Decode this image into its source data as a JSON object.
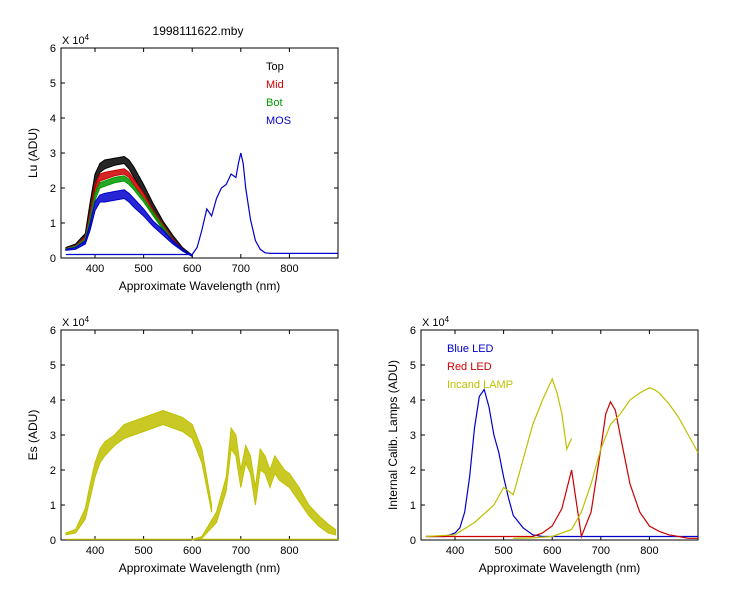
{
  "figure": {
    "title": "1998111622.mby"
  },
  "chart_data": [
    {
      "id": "lu",
      "type": "line",
      "title": "1998111622.mby",
      "xlabel": "Approximate Wavelength (nm)",
      "ylabel": "Lu (ADU)",
      "exponent_label": "X 10",
      "exponent_power": "4",
      "xlim": [
        330,
        900
      ],
      "ylim": [
        0,
        6
      ],
      "x_ticks": [
        400,
        500,
        600,
        700,
        800
      ],
      "y_ticks": [
        0,
        1,
        2,
        3,
        4,
        5,
        6
      ],
      "legend": {
        "placement": "top-right",
        "entries": [
          {
            "name": "Top",
            "color": "#000000"
          },
          {
            "name": "Mid",
            "color": "#cc0000"
          },
          {
            "name": "Bot",
            "color": "#009900"
          },
          {
            "name": "MOS",
            "color": "#0000cc"
          }
        ]
      },
      "series": [
        {
          "name": "Top",
          "color": "#000000",
          "band": true,
          "x": [
            340,
            360,
            380,
            390,
            400,
            410,
            420,
            440,
            460,
            470,
            480,
            500,
            520,
            540,
            560,
            580,
            600
          ],
          "lower": [
            0.25,
            0.3,
            0.5,
            1.1,
            2.0,
            2.45,
            2.55,
            2.65,
            2.7,
            2.55,
            2.3,
            1.85,
            1.35,
            0.9,
            0.5,
            0.2,
            0.05
          ],
          "upper": [
            0.3,
            0.4,
            0.7,
            1.6,
            2.4,
            2.7,
            2.8,
            2.85,
            2.9,
            2.8,
            2.6,
            2.1,
            1.55,
            1.05,
            0.65,
            0.3,
            0.08
          ]
        },
        {
          "name": "Mid",
          "color": "#cc0000",
          "band": true,
          "x": [
            340,
            360,
            380,
            390,
            400,
            410,
            420,
            440,
            460,
            470,
            480,
            500,
            520,
            540,
            560,
            580,
            600
          ],
          "lower": [
            0.25,
            0.3,
            0.45,
            1.0,
            1.8,
            2.2,
            2.25,
            2.35,
            2.4,
            2.3,
            2.1,
            1.7,
            1.25,
            0.85,
            0.45,
            0.2,
            0.05
          ],
          "upper": [
            0.28,
            0.35,
            0.6,
            1.3,
            2.1,
            2.4,
            2.45,
            2.5,
            2.55,
            2.45,
            2.25,
            1.85,
            1.35,
            0.95,
            0.55,
            0.25,
            0.06
          ]
        },
        {
          "name": "Bot",
          "color": "#009900",
          "band": true,
          "x": [
            340,
            360,
            380,
            390,
            400,
            410,
            420,
            440,
            460,
            470,
            480,
            500,
            520,
            540,
            560,
            580,
            600
          ],
          "lower": [
            0.25,
            0.3,
            0.45,
            0.9,
            1.65,
            2.0,
            2.05,
            2.15,
            2.2,
            2.1,
            1.95,
            1.6,
            1.2,
            0.8,
            0.45,
            0.2,
            0.05
          ],
          "upper": [
            0.27,
            0.33,
            0.55,
            1.15,
            1.85,
            2.15,
            2.2,
            2.3,
            2.35,
            2.25,
            2.05,
            1.7,
            1.3,
            0.9,
            0.5,
            0.22,
            0.06
          ]
        },
        {
          "name": "MOS",
          "color": "#0000cc",
          "band": true,
          "x": [
            340,
            360,
            380,
            390,
            400,
            410,
            420,
            440,
            460,
            470,
            480,
            500,
            520,
            540,
            560,
            580,
            600
          ],
          "lower": [
            0.22,
            0.25,
            0.4,
            0.8,
            1.35,
            1.6,
            1.6,
            1.65,
            1.7,
            1.6,
            1.45,
            1.2,
            0.9,
            0.65,
            0.4,
            0.2,
            0.05
          ],
          "upper": [
            0.25,
            0.3,
            0.5,
            1.0,
            1.6,
            1.8,
            1.85,
            1.9,
            1.95,
            1.85,
            1.7,
            1.4,
            1.05,
            0.8,
            0.5,
            0.25,
            0.07
          ]
        },
        {
          "name": "MOS",
          "color": "#0000cc",
          "band": false,
          "x": [
            340,
            600,
            610,
            620,
            630,
            640,
            650,
            660,
            670,
            680,
            690,
            695,
            700,
            705,
            710,
            720,
            730,
            740,
            750,
            760,
            800,
            900
          ],
          "y": [
            0.1,
            0.1,
            0.3,
            0.8,
            1.4,
            1.2,
            1.7,
            2.0,
            2.1,
            2.4,
            2.3,
            2.7,
            3.0,
            2.7,
            2.0,
            1.1,
            0.5,
            0.25,
            0.15,
            0.13,
            0.13,
            0.13
          ]
        }
      ]
    },
    {
      "id": "es",
      "type": "line",
      "title": "",
      "xlabel": "Approximate Wavelength (nm)",
      "ylabel": "Es (ADU)",
      "exponent_label": "X 10",
      "exponent_power": "4",
      "xlim": [
        330,
        900
      ],
      "ylim": [
        0,
        6
      ],
      "x_ticks": [
        400,
        500,
        600,
        700,
        800
      ],
      "y_ticks": [
        0,
        1,
        2,
        3,
        4,
        5,
        6
      ],
      "series": [
        {
          "name": "",
          "color": "#c0c000",
          "band": true,
          "x": [
            340,
            360,
            380,
            390,
            400,
            410,
            420,
            440,
            460,
            480,
            500,
            520,
            540,
            560,
            580,
            600,
            620,
            630,
            640
          ],
          "lower": [
            0.15,
            0.2,
            0.6,
            1.2,
            1.8,
            2.2,
            2.4,
            2.7,
            2.9,
            3.0,
            3.1,
            3.2,
            3.3,
            3.2,
            3.1,
            2.9,
            2.2,
            1.5,
            0.8
          ],
          "upper": [
            0.2,
            0.3,
            0.9,
            1.6,
            2.2,
            2.6,
            2.8,
            3.0,
            3.3,
            3.4,
            3.5,
            3.6,
            3.7,
            3.6,
            3.5,
            3.3,
            2.6,
            1.8,
            1.0
          ]
        },
        {
          "name": "",
          "color": "#c0c000",
          "band": true,
          "x": [
            600,
            620,
            650,
            670,
            680,
            690,
            700,
            710,
            720,
            730,
            740,
            750,
            760,
            770,
            780,
            790,
            800,
            820,
            840,
            860,
            880,
            895
          ],
          "lower": [
            0.0,
            0.05,
            0.5,
            1.4,
            2.6,
            2.4,
            1.5,
            2.2,
            1.9,
            1.0,
            2.0,
            1.9,
            1.5,
            1.9,
            1.7,
            1.6,
            1.5,
            1.1,
            0.7,
            0.4,
            0.2,
            0.15
          ],
          "upper": [
            0.02,
            0.1,
            0.8,
            1.8,
            3.2,
            3.0,
            2.0,
            2.7,
            2.4,
            1.5,
            2.6,
            2.4,
            2.0,
            2.4,
            2.2,
            2.0,
            1.9,
            1.5,
            1.0,
            0.7,
            0.45,
            0.3
          ]
        },
        {
          "name": "",
          "color": "#c0c000",
          "band": false,
          "x": [
            340,
            900
          ],
          "y": [
            0.02,
            0.02
          ]
        }
      ]
    },
    {
      "id": "lamps",
      "type": "line",
      "title": "",
      "xlabel": "Approximate Wavelength (nm)",
      "ylabel": "Internal Calib. Lamps (ADU)",
      "exponent_label": "X 10",
      "exponent_power": "4",
      "xlim": [
        330,
        900
      ],
      "ylim": [
        0,
        6
      ],
      "x_ticks": [
        400,
        500,
        600,
        700,
        800
      ],
      "y_ticks": [
        0,
        1,
        2,
        3,
        4,
        5,
        6
      ],
      "legend": {
        "placement": "top-left",
        "entries": [
          {
            "name": "Blue LED",
            "color": "#0000cc"
          },
          {
            "name": "Red LED",
            "color": "#cc0000"
          },
          {
            "name": "Incand LAMP",
            "color": "#c0c000"
          }
        ]
      },
      "series": [
        {
          "name": "Blue LED",
          "color": "#0000cc",
          "band": false,
          "x": [
            340,
            380,
            400,
            410,
            420,
            430,
            440,
            450,
            460,
            470,
            480,
            490,
            500,
            510,
            520,
            540,
            560,
            580,
            600,
            900
          ],
          "y": [
            0.1,
            0.1,
            0.2,
            0.35,
            0.8,
            1.8,
            3.2,
            4.1,
            4.3,
            3.8,
            3.0,
            2.5,
            1.8,
            1.2,
            0.7,
            0.35,
            0.15,
            0.1,
            0.1,
            0.1
          ]
        },
        {
          "name": "Red LED",
          "color": "#cc0000",
          "band": false,
          "x": [
            340,
            560,
            580,
            600,
            620,
            640,
            660,
            680,
            700,
            710,
            720,
            730,
            740,
            760,
            780,
            800,
            820,
            840,
            860,
            880,
            900
          ],
          "y": [
            0.1,
            0.1,
            0.2,
            0.4,
            0.9,
            2.0,
            0.1,
            0.8,
            2.6,
            3.6,
            3.95,
            3.7,
            3.0,
            1.6,
            0.8,
            0.4,
            0.25,
            0.15,
            0.1,
            0.05,
            0.05
          ]
        },
        {
          "name": "Incand LAMP",
          "color": "#c0c000",
          "band": false,
          "x": [
            340,
            400,
            440,
            480,
            500,
            520,
            540,
            560,
            580,
            600,
            610,
            620,
            630,
            640
          ],
          "y": [
            0.1,
            0.15,
            0.5,
            1.0,
            1.5,
            1.3,
            2.3,
            3.3,
            4.0,
            4.6,
            4.2,
            3.6,
            2.6,
            2.9
          ]
        },
        {
          "name": "Incand LAMP",
          "color": "#c0c000",
          "band": false,
          "x": [
            520,
            560,
            600,
            640,
            660,
            680,
            700,
            720,
            740,
            760,
            780,
            800,
            810,
            820,
            840,
            860,
            880,
            900
          ],
          "y": [
            0.05,
            0.06,
            0.1,
            0.3,
            0.8,
            1.6,
            2.6,
            3.3,
            3.6,
            4.0,
            4.2,
            4.35,
            4.3,
            4.2,
            3.9,
            3.5,
            3.0,
            2.5
          ]
        }
      ]
    }
  ]
}
